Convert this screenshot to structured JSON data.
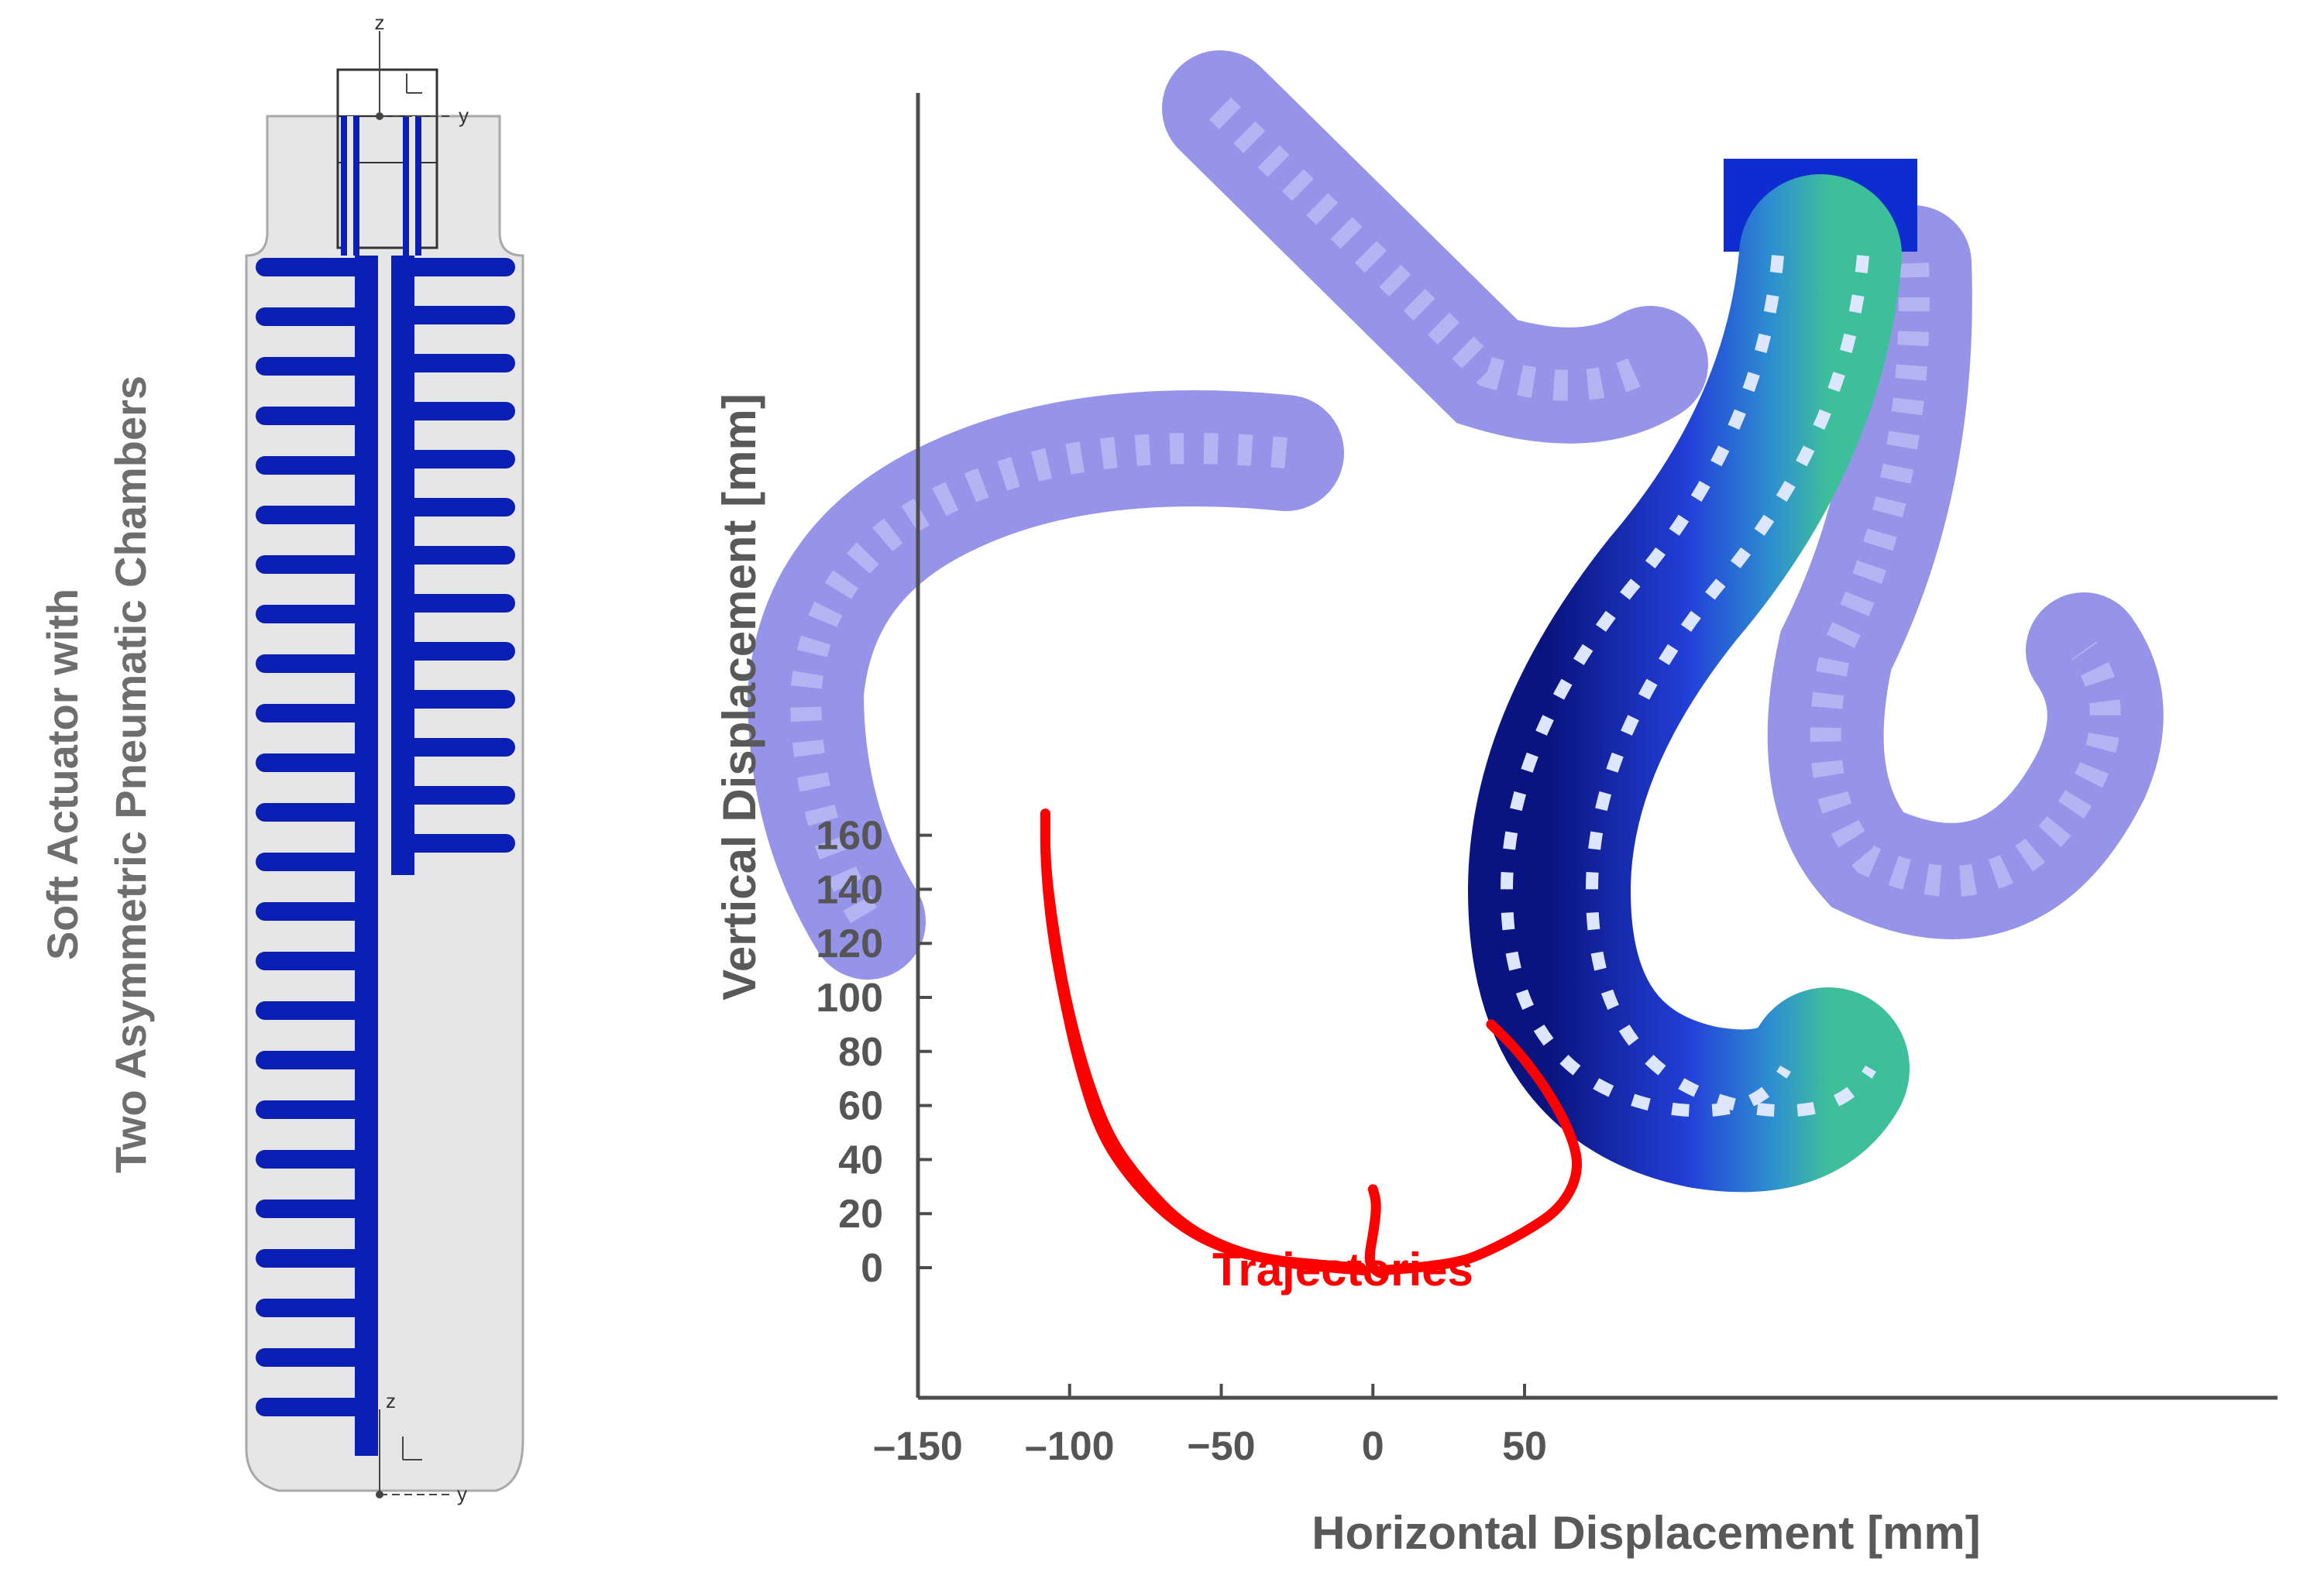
{
  "side_title": {
    "line1": "Soft Actuator with",
    "line2": "Two Asymmetric Pneumatic Chambers"
  },
  "coord_labels": {
    "top_z": "z",
    "top_y": "y",
    "bottom_z": "z",
    "bottom_y": "y"
  },
  "colors": {
    "chamber_blue": "#0b1fb5",
    "body_grey": "#e6e6e6",
    "trajectory_red": "#ff0000",
    "deformed_purple": "#7a78e0",
    "axis": "#4d4d4d"
  },
  "chart_data": {
    "type": "line",
    "xlabel": "Horizontal Displacement [mm]",
    "ylabel": "Vertical Displacement [mm]",
    "xlim": [
      -150,
      75
    ],
    "ylim": [
      -20,
      175
    ],
    "x_ticks": [
      -150,
      -100,
      -50,
      0,
      50
    ],
    "y_ticks": [
      0,
      20,
      40,
      60,
      80,
      100,
      120,
      140,
      160
    ],
    "x_tick_labels": [
      "–150",
      "–100",
      "−50",
      "0",
      "50"
    ],
    "y_tick_labels": [
      "0",
      "20",
      "40",
      "60",
      "80",
      "100",
      "120",
      "140",
      "160"
    ],
    "grid": false,
    "annotation": "Trajectories",
    "series": [
      {
        "color": "#ff0000",
        "x": [
          -108,
          -108,
          -106,
          -102,
          -97,
          -90,
          -80,
          -67,
          -52,
          -35,
          -17,
          -4
        ],
        "y": [
          168,
          150,
          125,
          100,
          75,
          50,
          33,
          18,
          8,
          3,
          1,
          0
        ]
      },
      {
        "color": "#ff0000",
        "x": [
          -108,
          -108,
          -105,
          -101,
          -95,
          -87,
          -76,
          -63,
          -48,
          -31,
          -14,
          -3
        ],
        "y": [
          168,
          149,
          123,
          98,
          72,
          48,
          31,
          16,
          7,
          2,
          0,
          -1
        ]
      },
      {
        "color": "#ff0000",
        "x": [
          39,
          48,
          58,
          66,
          68,
          62,
          50,
          36,
          28,
          15,
          3
        ],
        "y": [
          90,
          80,
          65,
          48,
          35,
          22,
          13,
          5,
          2,
          0,
          -1
        ]
      },
      {
        "color": "#ff0000",
        "x": [
          0,
          1,
          1,
          0,
          -1,
          -1,
          2,
          3
        ],
        "y": [
          29,
          25,
          20,
          12,
          6,
          1,
          -2,
          -2
        ]
      }
    ]
  }
}
